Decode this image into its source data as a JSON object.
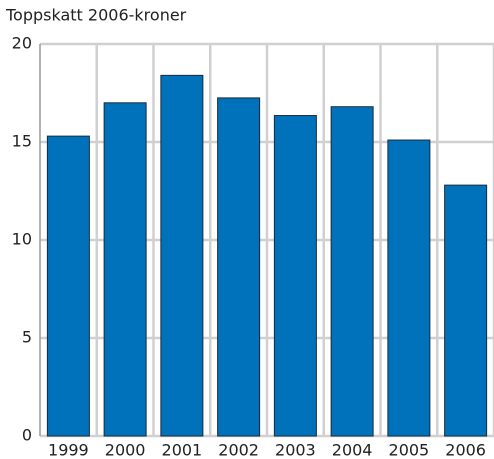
{
  "chart_data": {
    "type": "bar",
    "ylabel": "Toppskatt 2006-kroner",
    "categories": [
      "1999",
      "2000",
      "2001",
      "2002",
      "2003",
      "2004",
      "2005",
      "2006"
    ],
    "values": [
      15.3,
      17.0,
      18.4,
      17.25,
      16.35,
      16.8,
      15.1,
      12.8
    ],
    "color": "#0072bc",
    "ylim": [
      0,
      20
    ],
    "yticks": [
      0,
      5,
      10,
      15,
      20
    ],
    "grid": true
  }
}
